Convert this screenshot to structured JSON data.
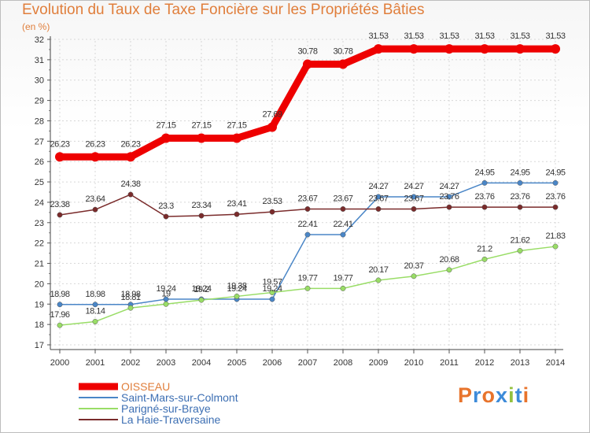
{
  "header": {
    "title": "Evolution du Taux de Taxe Foncière sur les Propriétés Bâties",
    "unit": "(en %)"
  },
  "logo": {
    "letters": [
      "P",
      "r",
      "o",
      "x",
      "i",
      "t",
      "i"
    ],
    "colors": [
      "#e8742c",
      "#3d8bd9",
      "#e8742c",
      "#3d8bd9",
      "#93c13f",
      "#3d8bd9",
      "#e8742c"
    ]
  },
  "chart_data": {
    "type": "line",
    "title": "Evolution du Taux de Taxe Foncière sur les Propriétés Bâties",
    "ylabel": "(en %)",
    "xlabel": "",
    "x": [
      "2000",
      "2001",
      "2002",
      "2003",
      "2004",
      "2005",
      "2006",
      "2007",
      "2008",
      "2009",
      "2010",
      "2011",
      "2012",
      "2013",
      "2014"
    ],
    "ylim": [
      17,
      32
    ],
    "yticks": [
      "17",
      "18",
      "19",
      "20",
      "21",
      "22",
      "23",
      "24",
      "25",
      "26",
      "27",
      "28",
      "29",
      "30",
      "31",
      "32"
    ],
    "grid": true,
    "legend": "bottom-left",
    "series": [
      {
        "name": "OISSEAU",
        "color": "#ee0000",
        "values": [
          26.23,
          26.23,
          26.23,
          27.15,
          27.15,
          27.15,
          27.69,
          30.78,
          30.78,
          31.53,
          31.53,
          31.53,
          31.53,
          31.53,
          31.53
        ],
        "labels": [
          "26.23",
          "26.23",
          "26.23",
          "27.15",
          "27.15",
          "27.15",
          "27.69",
          "30.78",
          "30.78",
          "31.53",
          "31.53",
          "31.53",
          "31.53",
          "31.53",
          "31.53"
        ]
      },
      {
        "name": "Saint-Mars-sur-Colmont",
        "color": "#4a86c7",
        "values": [
          18.98,
          18.98,
          18.98,
          19.24,
          19.24,
          19.24,
          19.24,
          22.41,
          22.41,
          24.27,
          24.27,
          24.27,
          24.95,
          24.95,
          24.95
        ],
        "labels": [
          "18.98",
          "18.98",
          "18.98",
          "19.24",
          "19.24",
          "19.24",
          "19.24",
          "22.41",
          "22.41",
          "24.27",
          "24.27",
          "24.27",
          "24.95",
          "24.95",
          "24.95"
        ]
      },
      {
        "name": "Parigné-sur-Braye",
        "color": "#99dd66",
        "values": [
          17.96,
          18.14,
          18.81,
          19.0,
          19.2,
          19.38,
          19.57,
          19.77,
          19.77,
          20.17,
          20.37,
          20.68,
          21.2,
          21.62,
          21.83
        ],
        "labels": [
          "17.96",
          "18.14",
          "18.81",
          "19",
          "19.2",
          "19.38",
          "19.57",
          "19.77",
          "19.77",
          "20.17",
          "20.37",
          "20.68",
          "21.2",
          "21.62",
          "21.83"
        ]
      },
      {
        "name": "La Haie-Traversaine",
        "color": "#7a2b2b",
        "values": [
          23.38,
          23.64,
          24.38,
          23.3,
          23.34,
          23.41,
          23.53,
          23.67,
          23.67,
          23.67,
          23.67,
          23.76,
          23.76,
          23.76,
          23.76
        ],
        "labels": [
          "23.38",
          "23.64",
          "24.38",
          "23.3",
          "23.34",
          "23.41",
          "23.53",
          "23.67",
          "23.67",
          "23.67",
          "23.67",
          "23.76",
          "23.76",
          "23.76",
          "23.76"
        ]
      }
    ]
  }
}
